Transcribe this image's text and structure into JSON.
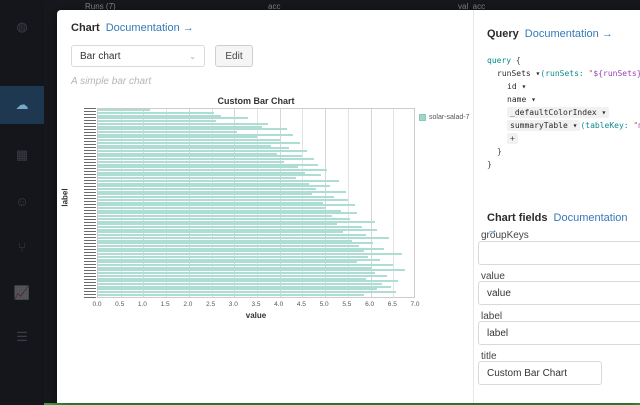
{
  "background": {
    "top_nav": {
      "runs_label": "Runs (7)",
      "metric_1": "acc",
      "metric_2": "val_acc"
    }
  },
  "modal": {
    "chart_panel": {
      "header": {
        "title": "Chart",
        "doc_link": "Documentation →"
      },
      "type_select": {
        "value": "Bar chart",
        "chevron": "⌄"
      },
      "edit_button": "Edit",
      "description": "A simple bar chart"
    },
    "query_panel": {
      "header": {
        "title": "Query",
        "doc_link": "Documentation →"
      },
      "code_lines": [
        {
          "indent": 0,
          "segs": [
            {
              "t": "query ",
              "c": "kw"
            },
            {
              "t": "{",
              "c": "pl"
            }
          ]
        },
        {
          "indent": 1,
          "segs": [
            {
              "t": "runSets ▾",
              "c": "fld"
            },
            {
              "t": "(",
              "c": "arg"
            },
            {
              "t": "runSets:",
              "c": "arg"
            },
            {
              "t": " ",
              "c": "pl"
            },
            {
              "t": "\"",
              "c": "q"
            },
            {
              "t": "${runSets}",
              "c": "tpl"
            },
            {
              "t": "\"",
              "c": "q"
            },
            {
              "t": " →",
              "c": "more"
            }
          ]
        },
        {
          "indent": 2,
          "segs": [
            {
              "t": "id ▾",
              "c": "fld"
            }
          ]
        },
        {
          "indent": 2,
          "segs": [
            {
              "t": "name ▾",
              "c": "fld"
            }
          ]
        },
        {
          "indent": 2,
          "segs": [
            {
              "t": "_defaultColorIndex ▾",
              "c": "fld",
              "chip": true
            }
          ]
        },
        {
          "indent": 2,
          "segs": [
            {
              "t": "summaryTable ▾",
              "c": "fld",
              "chip": true
            },
            {
              "t": "(",
              "c": "arg"
            },
            {
              "t": "tableKey:",
              "c": "arg"
            },
            {
              "t": " ",
              "c": "pl"
            },
            {
              "t": "\"",
              "c": "q"
            },
            {
              "t": "my_ba",
              "c": "tpl"
            }
          ]
        },
        {
          "indent": 2,
          "segs": [
            {
              "t": "+",
              "c": "pl",
              "chip": true
            }
          ]
        },
        {
          "indent": 1,
          "segs": [
            {
              "t": "}",
              "c": "pl"
            }
          ]
        },
        {
          "indent": 0,
          "segs": [
            {
              "t": "}",
              "c": "pl"
            }
          ]
        }
      ]
    },
    "fields_panel": {
      "header": {
        "title": "Chart fields",
        "doc_link": "Documentation →"
      },
      "fields": [
        {
          "label": "groupKeys",
          "value": ""
        },
        {
          "label": "value",
          "value": "value"
        },
        {
          "label": "label",
          "value": "label"
        },
        {
          "label": "title",
          "value": "Custom Bar Chart"
        }
      ]
    }
  },
  "chart_data": {
    "type": "bar",
    "orientation": "horizontal",
    "title": "Custom Bar Chart",
    "xlabel": "value",
    "ylabel": "label",
    "xlim": [
      0,
      7
    ],
    "x_ticks": [
      "0.0",
      "0.5",
      "1.0",
      "1.5",
      "2.0",
      "2.5",
      "3.0",
      "3.5",
      "4.0",
      "4.5",
      "5.0",
      "5.5",
      "6.0",
      "6.5",
      "7.0"
    ],
    "legend": [
      {
        "name": "solar-salad-7",
        "color": "#9fd6ca"
      }
    ],
    "bar_color": "#aeddd4",
    "grid": true,
    "y_tick_labels": "dense run labels, illegible at this scale",
    "num_bars": 70,
    "values": [
      1.15,
      2.55,
      2.7,
      3.3,
      2.6,
      3.75,
      3.6,
      4.15,
      3.05,
      4.3,
      3.5,
      4.0,
      4.45,
      3.8,
      4.2,
      4.6,
      3.95,
      4.5,
      4.75,
      4.1,
      4.85,
      4.4,
      5.05,
      4.55,
      4.9,
      4.35,
      5.3,
      4.65,
      5.1,
      4.8,
      5.45,
      4.7,
      5.2,
      5.5,
      4.95,
      5.65,
      5.0,
      5.35,
      5.7,
      5.15,
      5.55,
      6.1,
      5.25,
      5.8,
      6.15,
      5.4,
      5.9,
      6.4,
      5.6,
      6.05,
      5.75,
      6.3,
      5.85,
      6.7,
      5.95,
      6.2,
      5.7,
      6.5,
      6.0,
      6.75,
      6.1,
      6.35,
      5.9,
      6.6,
      6.25,
      6.45,
      6.15,
      6.55,
      5.85,
      6.9
    ]
  }
}
